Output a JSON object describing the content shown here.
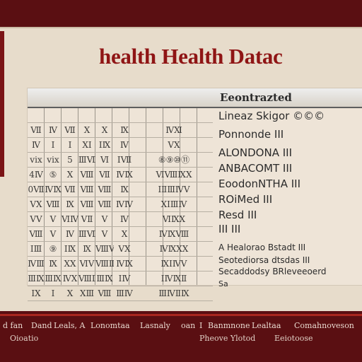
{
  "title": "health Health Datac",
  "card_title": "Eeontrazted",
  "grid_rows": [
    [
      "",
      "",
      "",
      "",
      "",
      "",
      ""
    ],
    [
      "Ⅶ",
      "Ⅳ",
      "Ⅶ",
      "Ⅹ",
      "Ⅹ",
      "Ⅸ",
      "ⅣⅪ"
    ],
    [
      "Ⅳ",
      "Ⅰ",
      "Ⅰ",
      "ⅩⅠ",
      "ⅠⅨ",
      "Ⅳ",
      "ⅤⅩ"
    ],
    [
      "ⅴⅸ",
      "ⅴⅸ",
      "5",
      "ⅢⅦ",
      "Ⅵ",
      "ⅠⅦ",
      "⑧⑨⑩⑪"
    ],
    [
      "4Ⅳ",
      "⑤",
      "Ⅹ",
      "Ⅷ",
      "Ⅶ",
      "ⅣⅨ",
      "ⅥⅧⅨⅩ"
    ],
    [
      "0Ⅶ",
      "ⅣⅨ",
      "Ⅶ",
      "Ⅷ",
      "Ⅷ",
      "Ⅸ",
      "ⅠⅡⅢⅣⅤ"
    ],
    [
      "ⅤⅩ",
      "Ⅷ",
      "Ⅸ",
      "Ⅷ",
      "Ⅷ",
      "ⅣⅣ",
      "ⅩⅠⅢⅣ"
    ],
    [
      "ⅤⅤ",
      "Ⅴ",
      "ⅥⅣ",
      "ⅤⅡ",
      "Ⅴ",
      "Ⅳ",
      "ⅥⅨⅩ"
    ],
    [
      "Ⅷ",
      "Ⅴ",
      "Ⅳ",
      "ⅢⅦ",
      "Ⅴ",
      "Ⅹ",
      "ⅣⅨⅧ"
    ],
    [
      "ⅠⅢ",
      "⑨",
      "ⅠⅨ",
      "Ⅸ",
      "ⅧⅥ",
      "ⅤⅩ",
      "ⅣⅨⅩⅩ"
    ],
    [
      "ⅣⅢ",
      "Ⅸ",
      "ⅩⅩ",
      "ⅥⅤ",
      "ⅧⅢ",
      "ⅣⅨ",
      "ⅨⅠⅣⅤ"
    ],
    [
      "ⅢⅨ",
      "ⅢⅨ",
      "ⅣⅩ",
      "ⅧⅢ",
      "ⅢⅨ",
      "ⅠⅣ",
      "ⅠⅣⅨⅡ"
    ],
    [
      "ⅠⅩ",
      "Ⅰ",
      "Ⅹ",
      "ⅩⅢ",
      "Ⅷ",
      "ⅢⅣ",
      "ⅢⅣⅡⅨ"
    ]
  ],
  "labels": [
    {
      "text": "Lineaz Skigor  ©©©"
    },
    {
      "text": "Ponnonde  ⅠⅠⅠ"
    },
    {
      "text": "ALONDONA  ⅠⅠⅠ"
    },
    {
      "text": "ANBACOMT  ⅠⅠⅠ"
    },
    {
      "text": "EoodonNTHA  ⅠⅠⅠ"
    },
    {
      "text": "ROiMed  ⅠⅠⅠ"
    },
    {
      "text": "Resd  ⅠⅠⅠ"
    },
    {
      "text": "ⅠⅠⅠ  ⅠⅠⅠ"
    },
    {
      "text": "A Healorao Bstadt  ⅠⅠⅠ"
    },
    {
      "text": "Seotediorsa dtsdas  ⅠⅠⅠ"
    },
    {
      "text": "Secaddodsy BRleveeoerd"
    },
    {
      "text": "Sa"
    }
  ],
  "footer": {
    "row1": [
      "d  fan",
      "Dand",
      "Leals,  A",
      "Lonomtaa",
      "Lasnaly",
      "oan",
      "Ⅰ",
      "Banmnone",
      "Lealtaa",
      "Comahnoveson"
    ],
    "row2": [
      "Oioatio",
      "Pheove Ylotod",
      "Eeiotoose"
    ]
  }
}
